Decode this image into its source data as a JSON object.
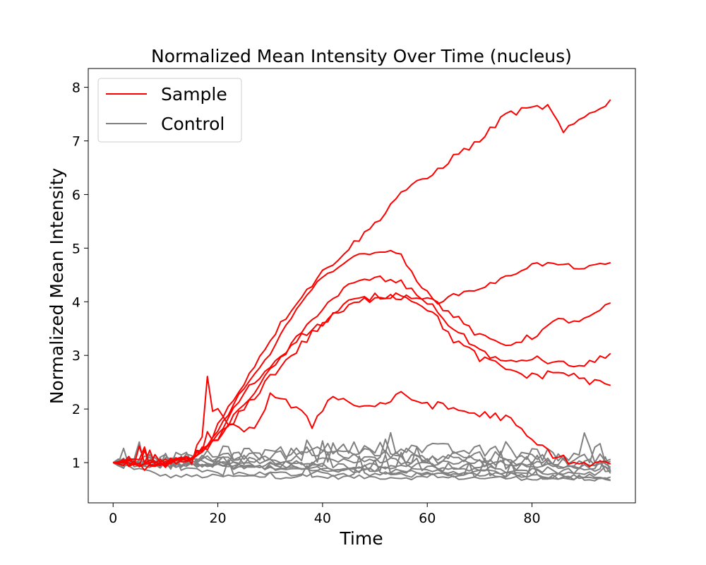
{
  "chart_data": {
    "type": "line",
    "title": "Normalized Mean Intensity Over Time (nucleus)",
    "xlabel": "Time",
    "ylabel": "Normalized Mean Intensity",
    "xlim": [
      -4.75,
      99.75
    ],
    "ylim": [
      0.25,
      8.35
    ],
    "xticks": [
      0,
      20,
      40,
      60,
      80
    ],
    "yticks": [
      1,
      2,
      3,
      4,
      5,
      6,
      7,
      8
    ],
    "grid": false,
    "legend": {
      "position": "top-left",
      "entries": [
        {
          "label": "Sample",
          "color": "#ff0000"
        },
        {
          "label": "Control",
          "color": "#808080"
        }
      ]
    },
    "colors": {
      "sample": "#ff0000",
      "control": "#808080"
    },
    "sample_profiles": [
      {
        "points": [
          [
            0,
            1.0
          ],
          [
            10,
            0.97
          ],
          [
            15,
            1.1
          ],
          [
            18,
            1.35
          ],
          [
            20,
            1.7
          ],
          [
            25,
            2.5
          ],
          [
            30,
            3.3
          ],
          [
            35,
            4.0
          ],
          [
            40,
            4.55
          ],
          [
            45,
            5.0
          ],
          [
            50,
            5.45
          ],
          [
            55,
            6.05
          ],
          [
            60,
            6.3
          ],
          [
            65,
            6.7
          ],
          [
            70,
            7.0
          ],
          [
            75,
            7.5
          ],
          [
            80,
            7.6
          ],
          [
            83,
            7.65
          ],
          [
            86,
            7.15
          ],
          [
            90,
            7.45
          ],
          [
            95,
            7.75
          ]
        ],
        "noise": 0.06
      },
      {
        "points": [
          [
            0,
            1.0
          ],
          [
            10,
            0.97
          ],
          [
            15,
            1.1
          ],
          [
            18,
            1.3
          ],
          [
            20,
            1.6
          ],
          [
            25,
            2.4
          ],
          [
            30,
            3.0
          ],
          [
            35,
            3.9
          ],
          [
            40,
            4.45
          ],
          [
            45,
            4.8
          ],
          [
            50,
            4.95
          ],
          [
            55,
            4.9
          ],
          [
            58,
            4.35
          ],
          [
            62,
            4.0
          ],
          [
            66,
            4.15
          ],
          [
            70,
            4.25
          ],
          [
            75,
            4.45
          ],
          [
            80,
            4.7
          ],
          [
            85,
            4.7
          ],
          [
            90,
            4.62
          ],
          [
            95,
            4.72
          ]
        ],
        "noise": 0.04
      },
      {
        "points": [
          [
            0,
            1.0
          ],
          [
            10,
            0.97
          ],
          [
            15,
            1.1
          ],
          [
            18,
            1.3
          ],
          [
            20,
            1.5
          ],
          [
            25,
            2.3
          ],
          [
            30,
            2.8
          ],
          [
            35,
            3.3
          ],
          [
            40,
            3.6
          ],
          [
            45,
            4.0
          ],
          [
            50,
            4.1
          ],
          [
            55,
            4.1
          ],
          [
            60,
            4.1
          ],
          [
            65,
            3.75
          ],
          [
            70,
            3.35
          ],
          [
            75,
            3.2
          ],
          [
            80,
            3.35
          ],
          [
            85,
            3.65
          ],
          [
            90,
            3.65
          ],
          [
            95,
            3.95
          ]
        ],
        "noise": 0.06
      },
      {
        "points": [
          [
            0,
            1.0
          ],
          [
            10,
            0.97
          ],
          [
            15,
            1.1
          ],
          [
            18,
            1.3
          ],
          [
            20,
            1.45
          ],
          [
            25,
            2.1
          ],
          [
            30,
            2.7
          ],
          [
            35,
            3.3
          ],
          [
            40,
            3.9
          ],
          [
            45,
            4.3
          ],
          [
            50,
            4.45
          ],
          [
            55,
            4.35
          ],
          [
            60,
            4.0
          ],
          [
            65,
            3.5
          ],
          [
            70,
            3.1
          ],
          [
            75,
            2.85
          ],
          [
            80,
            2.95
          ],
          [
            85,
            2.85
          ],
          [
            90,
            2.8
          ],
          [
            95,
            3.05
          ]
        ],
        "noise": 0.06
      },
      {
        "points": [
          [
            0,
            1.0
          ],
          [
            10,
            0.97
          ],
          [
            15,
            1.1
          ],
          [
            18,
            1.3
          ],
          [
            20,
            1.4
          ],
          [
            25,
            2.0
          ],
          [
            30,
            2.6
          ],
          [
            35,
            3.1
          ],
          [
            40,
            3.6
          ],
          [
            45,
            3.9
          ],
          [
            50,
            4.1
          ],
          [
            55,
            4.15
          ],
          [
            60,
            3.9
          ],
          [
            65,
            3.3
          ],
          [
            70,
            2.95
          ],
          [
            75,
            2.75
          ],
          [
            80,
            2.6
          ],
          [
            85,
            2.7
          ],
          [
            90,
            2.55
          ],
          [
            95,
            2.42
          ]
        ],
        "noise": 0.08
      },
      {
        "points": [
          [
            0,
            1.0
          ],
          [
            10,
            1.0
          ],
          [
            15,
            1.05
          ],
          [
            17,
            1.5
          ],
          [
            18,
            2.65
          ],
          [
            19,
            1.9
          ],
          [
            20,
            1.95
          ],
          [
            25,
            1.5
          ],
          [
            28,
            1.8
          ],
          [
            30,
            2.3
          ],
          [
            35,
            2.0
          ],
          [
            38,
            1.7
          ],
          [
            42,
            2.3
          ],
          [
            45,
            2.1
          ],
          [
            50,
            2.05
          ],
          [
            55,
            2.25
          ],
          [
            60,
            2.1
          ],
          [
            65,
            2.0
          ],
          [
            70,
            1.9
          ],
          [
            75,
            1.85
          ],
          [
            80,
            1.4
          ],
          [
            85,
            1.1
          ],
          [
            90,
            0.95
          ],
          [
            95,
            1.0
          ]
        ],
        "noise": 0.08
      }
    ],
    "control_profiles": [
      {
        "points": [
          [
            0,
            1.0
          ],
          [
            10,
            0.75
          ],
          [
            95,
            0.7
          ]
        ],
        "noise": 0.04
      },
      {
        "points": [
          [
            0,
            1.0
          ],
          [
            20,
            0.8
          ],
          [
            95,
            0.75
          ]
        ],
        "noise": 0.05
      },
      {
        "points": [
          [
            0,
            1.0
          ],
          [
            50,
            0.85
          ],
          [
            95,
            0.8
          ]
        ],
        "noise": 0.05
      },
      {
        "points": [
          [
            0,
            1.0
          ],
          [
            50,
            0.9
          ],
          [
            95,
            0.85
          ]
        ],
        "noise": 0.07
      },
      {
        "points": [
          [
            0,
            1.0
          ],
          [
            50,
            0.95
          ],
          [
            95,
            0.9
          ]
        ],
        "noise": 0.07
      },
      {
        "points": [
          [
            0,
            1.0
          ],
          [
            40,
            1.05
          ],
          [
            95,
            0.95
          ]
        ],
        "noise": 0.08
      },
      {
        "points": [
          [
            0,
            1.0
          ],
          [
            40,
            1.1
          ],
          [
            95,
            1.0
          ]
        ],
        "noise": 0.09
      },
      {
        "points": [
          [
            0,
            1.0
          ],
          [
            45,
            1.2
          ],
          [
            95,
            1.05
          ]
        ],
        "noise": 0.12
      },
      {
        "points": [
          [
            0,
            1.0
          ],
          [
            50,
            1.3
          ],
          [
            95,
            1.1
          ]
        ],
        "noise": 0.12
      },
      {
        "points": [
          [
            0,
            1.0
          ],
          [
            30,
            0.9
          ],
          [
            95,
            0.7
          ]
        ],
        "noise": 0.05
      }
    ]
  }
}
